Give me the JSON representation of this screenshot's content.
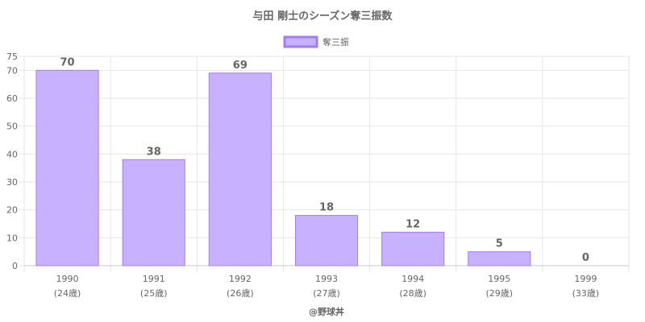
{
  "chart_data": {
    "type": "bar",
    "title": "与田 剛士のシーズン奪三振数",
    "categories": [
      "1990",
      "1991",
      "1992",
      "1993",
      "1994",
      "1995",
      "1999"
    ],
    "category_sublabels": [
      "(24歳)",
      "(25歳)",
      "(26歳)",
      "(27歳)",
      "(28歳)",
      "(29歳)",
      "(33歳)"
    ],
    "series": [
      {
        "name": "奪三振",
        "values": [
          70,
          38,
          69,
          18,
          12,
          5,
          0
        ]
      }
    ],
    "ylim": [
      0,
      75
    ],
    "yticks": [
      0,
      10,
      20,
      30,
      40,
      50,
      60,
      70,
      75
    ],
    "xlabel": "",
    "ylabel": "",
    "grid": true,
    "legend_position": "top-center",
    "bar_fill": "#c8b1ff",
    "bar_stroke": "#a27cf6"
  },
  "footer": "@野球丼"
}
